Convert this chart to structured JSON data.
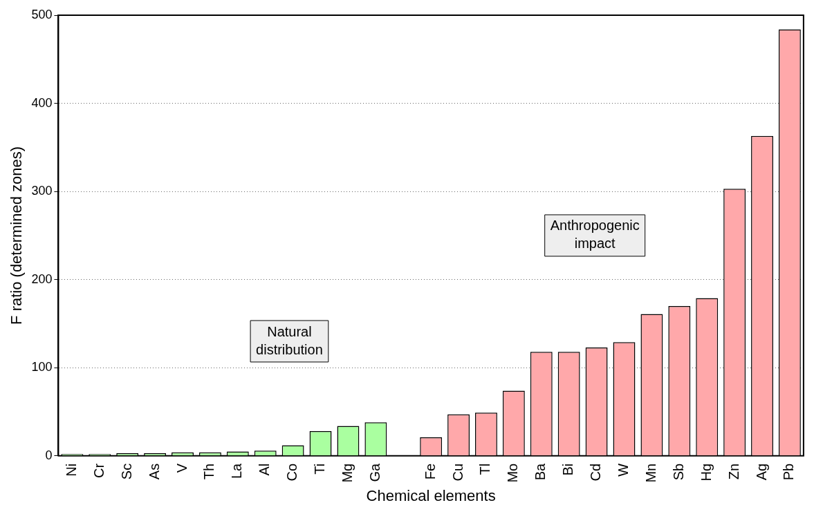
{
  "chart_data": {
    "type": "bar",
    "xlabel": "Chemical elements",
    "ylabel": "F ratio (determined zones)",
    "categories": [
      "Ni",
      "Cr",
      "Sc",
      "As",
      "V",
      "Th",
      "La",
      "Al",
      "Co",
      "Ti",
      "Mg",
      "Ga",
      null,
      "Fe",
      "Cu",
      "Tl",
      "Mo",
      "Ba",
      "Bi",
      "Cd",
      "W",
      "Mn",
      "Sb",
      "Hg",
      "Zn",
      "Ag",
      "Pb"
    ],
    "values": [
      2,
      2,
      3,
      3,
      4,
      4,
      5,
      6,
      12,
      28,
      34,
      38,
      null,
      21,
      47,
      49,
      74,
      118,
      118,
      123,
      129,
      161,
      170,
      179,
      303,
      363,
      484
    ],
    "colors": [
      "#aaffa0",
      "#aaffa0",
      "#aaffa0",
      "#aaffa0",
      "#aaffa0",
      "#aaffa0",
      "#aaffa0",
      "#aaffa0",
      "#aaffa0",
      "#aaffa0",
      "#aaffa0",
      "#aaffa0",
      "#aaffa0",
      "#ffa8aa",
      "#ffa8aa",
      "#ffa8aa",
      "#ffa8aa",
      "#ffa8aa",
      "#ffa8aa",
      "#ffa8aa",
      "#ffa8aa",
      "#ffa8aa",
      "#ffa8aa",
      "#ffa8aa",
      "#ffa8aa",
      "#ffa8aa",
      "#ffa8aa"
    ],
    "ylim": [
      0,
      500
    ],
    "yticks": [
      0,
      100,
      200,
      300,
      400,
      500
    ],
    "grid": "y",
    "annotations": [
      "Natural\ndistribution",
      "Anthropogenic\nimpact"
    ]
  }
}
